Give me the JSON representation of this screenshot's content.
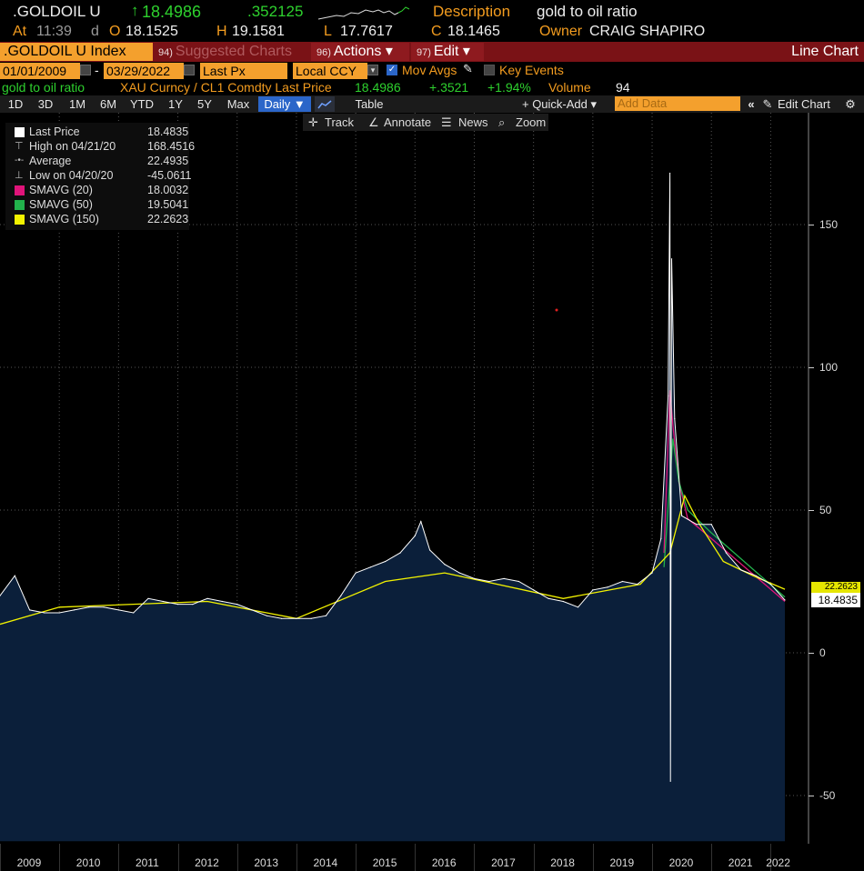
{
  "header": {
    "ticker": ".GOLDOIL U",
    "arrow": "↑",
    "last": "18.4986",
    "change": ".352125",
    "desc_label": "Description",
    "desc_value": "gold to oil ratio",
    "at_label": "At",
    "time": "11:39",
    "d_label": "d",
    "o_label": "O",
    "open": "18.1525",
    "h_label": "H",
    "high": "19.1581",
    "l_label": "L",
    "low": "17.7617",
    "c_label": "C",
    "close": "18.1465",
    "owner_label": "Owner",
    "owner": "CRAIG SHAPIRO"
  },
  "titlebar": {
    "security": ".GOLDOIL U Index",
    "suggested_num": "94)",
    "suggested": "Suggested Charts",
    "actions_num": "96)",
    "actions": "Actions ▾",
    "edit_num": "97)",
    "edit": "Edit ▾",
    "chart_type": "Line Chart"
  },
  "fields": {
    "start_date": "01/01/2009",
    "dash": "-",
    "end_date": "03/29/2022",
    "field": "Last Px",
    "currency": "Local CCY",
    "mov_avgs": "Mov Avgs",
    "key_events": "Key Events"
  },
  "info": {
    "name": "gold to oil ratio",
    "formula": "XAU Curncy / CL1 Comdty Last Price",
    "last": "18.4986",
    "change": "+.3521",
    "pct": "+1.94%",
    "volume_label": "Volume",
    "volume": "94"
  },
  "toolbar": {
    "periods": [
      "1D",
      "3D",
      "1M",
      "6M",
      "YTD",
      "1Y",
      "5Y",
      "Max"
    ],
    "daily": "Daily ▼",
    "table": "Table",
    "quick_add": "+ Quick-Add ▾",
    "add_data_placeholder": "Add Data",
    "edit_chart": "Edit Chart"
  },
  "tools": {
    "track": "Track",
    "annotate": "Annotate",
    "news": "News",
    "zoom": "Zoom"
  },
  "legend": [
    {
      "name": "Last Price",
      "value": "18.4835",
      "color": "#ffffff",
      "icon": "square"
    },
    {
      "name": "High on 04/21/20",
      "value": "168.4516",
      "color": "#bbbbbb",
      "icon": "high-marker"
    },
    {
      "name": "Average",
      "value": "22.4935",
      "color": "#bbbbbb",
      "icon": "average-marker"
    },
    {
      "name": "Low on 04/20/20",
      "value": "-45.0611",
      "color": "#bbbbbb",
      "icon": "low-marker"
    },
    {
      "name": "SMAVG (20)",
      "value": "18.0032",
      "color": "#e0147a",
      "icon": "square"
    },
    {
      "name": "SMAVG (50)",
      "value": "19.5041",
      "color": "#22b24c",
      "icon": "square"
    },
    {
      "name": "SMAVG (150)",
      "value": "22.2623",
      "color": "#f2f200",
      "icon": "square"
    }
  ],
  "price_labels": {
    "last": "18.4835",
    "smavg150": "22.2623"
  },
  "chart_data": {
    "type": "area",
    "x_ticks": [
      "2009",
      "2010",
      "2011",
      "2012",
      "2013",
      "2014",
      "2015",
      "2016",
      "2017",
      "2018",
      "2019",
      "2020",
      "2021",
      "2022"
    ],
    "y_ticks": [
      "150",
      "100",
      "50",
      "0",
      "-50"
    ],
    "ylim": [
      -66,
      184
    ],
    "grid": true,
    "series": [
      {
        "name": "Last Price",
        "color": "#ffffff",
        "x": [
          2009.0,
          2009.25,
          2009.5,
          2009.75,
          2010.0,
          2010.25,
          2010.5,
          2010.75,
          2011.0,
          2011.25,
          2011.5,
          2011.75,
          2012.0,
          2012.25,
          2012.5,
          2012.75,
          2013.0,
          2013.25,
          2013.5,
          2013.75,
          2014.0,
          2014.25,
          2014.5,
          2014.75,
          2015.0,
          2015.25,
          2015.5,
          2015.75,
          2016.0,
          2016.1,
          2016.25,
          2016.5,
          2016.75,
          2017.0,
          2017.25,
          2017.5,
          2017.75,
          2018.0,
          2018.25,
          2018.5,
          2018.75,
          2019.0,
          2019.25,
          2019.5,
          2019.75,
          2020.0,
          2020.15,
          2020.27,
          2020.3,
          2020.31,
          2020.33,
          2020.38,
          2020.5,
          2020.75,
          2021.0,
          2021.25,
          2021.5,
          2021.75,
          2022.0,
          2022.24
        ],
        "y": [
          20,
          27,
          15,
          14,
          14,
          15,
          16,
          16,
          15,
          14,
          19,
          18,
          17,
          17,
          19,
          18,
          17,
          15,
          13,
          12,
          12,
          12,
          13,
          20,
          28,
          30,
          32,
          35,
          41,
          46,
          36,
          31,
          28,
          26,
          25,
          26,
          25,
          22,
          19,
          18,
          16,
          22,
          23,
          25,
          24,
          28,
          40,
          90,
          168,
          -45,
          138,
          82,
          48,
          45,
          45,
          35,
          29,
          27,
          24,
          18.4835
        ]
      },
      {
        "name": "SMAVG (20)",
        "color": "#e0147a",
        "x": [
          2020.2,
          2020.3,
          2020.35,
          2020.45,
          2020.6,
          2021.0,
          2022.24
        ],
        "y": [
          35,
          92,
          80,
          60,
          47,
          40,
          18.0032
        ]
      },
      {
        "name": "SMAVG (50)",
        "color": "#22b24c",
        "x": [
          2020.2,
          2020.35,
          2020.45,
          2020.6,
          2021.0,
          2022.24
        ],
        "y": [
          30,
          75,
          60,
          50,
          42,
          19.5041
        ]
      },
      {
        "name": "SMAVG (150)",
        "color": "#f2f200",
        "x": [
          2009.0,
          2010.0,
          2012.5,
          2014.0,
          2015.5,
          2016.5,
          2018.5,
          2019.8,
          2020.3,
          2020.55,
          2020.8,
          2021.2,
          2021.7,
          2022.24
        ],
        "y": [
          10,
          16,
          18,
          12,
          25,
          28,
          19,
          24,
          35,
          55,
          45,
          32,
          27,
          22.2623
        ]
      }
    ]
  }
}
